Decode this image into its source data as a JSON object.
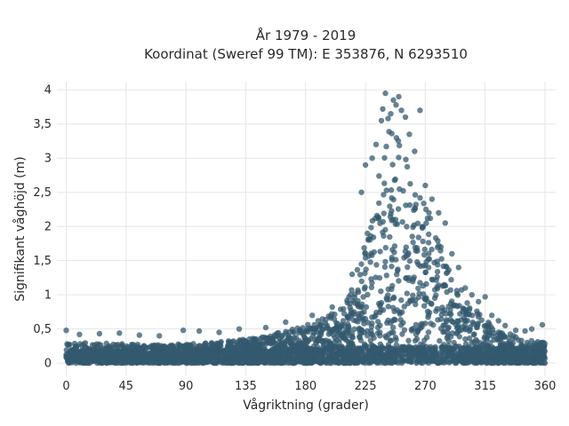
{
  "chart_data": {
    "type": "scatter",
    "title_line1": "År 1979 - 2019",
    "title_line2": "Koordinat (Sweref 99 TM): E 353876, N 6293510",
    "xlabel": "Vågriktning (grader)",
    "ylabel": "Signifikant våghöjd (m)",
    "xlim": [
      -7,
      368
    ],
    "ylim": [
      -0.18,
      4.12
    ],
    "x_ticks": [
      0,
      45,
      90,
      135,
      180,
      225,
      270,
      315,
      360
    ],
    "x_tick_labels": [
      "0",
      "45",
      "90",
      "135",
      "180",
      "225",
      "270",
      "315",
      "360"
    ],
    "y_ticks": [
      0,
      0.5,
      1,
      1.5,
      2,
      2.5,
      3,
      3.5,
      4
    ],
    "y_tick_labels": [
      "0",
      "0,5",
      "1",
      "1,5",
      "2",
      "2,5",
      "3",
      "3,5",
      "4"
    ],
    "grid": true,
    "marker_color": "#34596f",
    "density_envelope": {
      "x": [
        0,
        20,
        45,
        70,
        90,
        110,
        135,
        150,
        165,
        180,
        195,
        205,
        215,
        225,
        230,
        235,
        240,
        245,
        250,
        255,
        260,
        265,
        270,
        275,
        280,
        290,
        300,
        310,
        320,
        330,
        345,
        360
      ],
      "y_upper": [
        0.3,
        0.3,
        0.28,
        0.27,
        0.28,
        0.3,
        0.35,
        0.4,
        0.48,
        0.55,
        0.68,
        0.8,
        1.1,
        1.8,
        2.4,
        3.0,
        3.3,
        3.5,
        3.3,
        3.0,
        2.8,
        2.6,
        2.4,
        2.1,
        1.8,
        1.3,
        1.0,
        0.75,
        0.55,
        0.45,
        0.35,
        0.3
      ]
    },
    "outliers": [
      [
        0,
        0.48
      ],
      [
        10,
        0.42
      ],
      [
        25,
        0.43
      ],
      [
        40,
        0.44
      ],
      [
        55,
        0.41
      ],
      [
        70,
        0.4
      ],
      [
        88,
        0.48
      ],
      [
        100,
        0.47
      ],
      [
        115,
        0.45
      ],
      [
        130,
        0.5
      ],
      [
        150,
        0.52
      ],
      [
        165,
        0.6
      ],
      [
        185,
        0.7
      ],
      [
        200,
        0.82
      ],
      [
        215,
        1.3
      ],
      [
        222,
        2.5
      ],
      [
        225,
        2.9
      ],
      [
        230,
        3.0
      ],
      [
        233,
        3.2
      ],
      [
        237,
        3.55
      ],
      [
        238,
        3.72
      ],
      [
        240,
        3.95
      ],
      [
        242,
        3.58
      ],
      [
        244,
        3.65
      ],
      [
        246,
        3.85
      ],
      [
        248,
        3.78
      ],
      [
        250,
        3.9
      ],
      [
        252,
        3.7
      ],
      [
        255,
        3.6
      ],
      [
        258,
        3.35
      ],
      [
        262,
        3.1
      ],
      [
        266,
        3.7
      ],
      [
        270,
        2.6
      ],
      [
        275,
        2.4
      ],
      [
        280,
        2.2
      ],
      [
        285,
        2.05
      ],
      [
        290,
        1.6
      ],
      [
        295,
        1.4
      ],
      [
        300,
        1.1
      ],
      [
        305,
        1.0
      ],
      [
        310,
        0.9
      ],
      [
        315,
        0.97
      ],
      [
        320,
        0.7
      ],
      [
        325,
        0.62
      ],
      [
        330,
        0.55
      ],
      [
        338,
        0.48
      ],
      [
        345,
        0.47
      ],
      [
        350,
        0.5
      ],
      [
        358,
        0.56
      ]
    ]
  }
}
